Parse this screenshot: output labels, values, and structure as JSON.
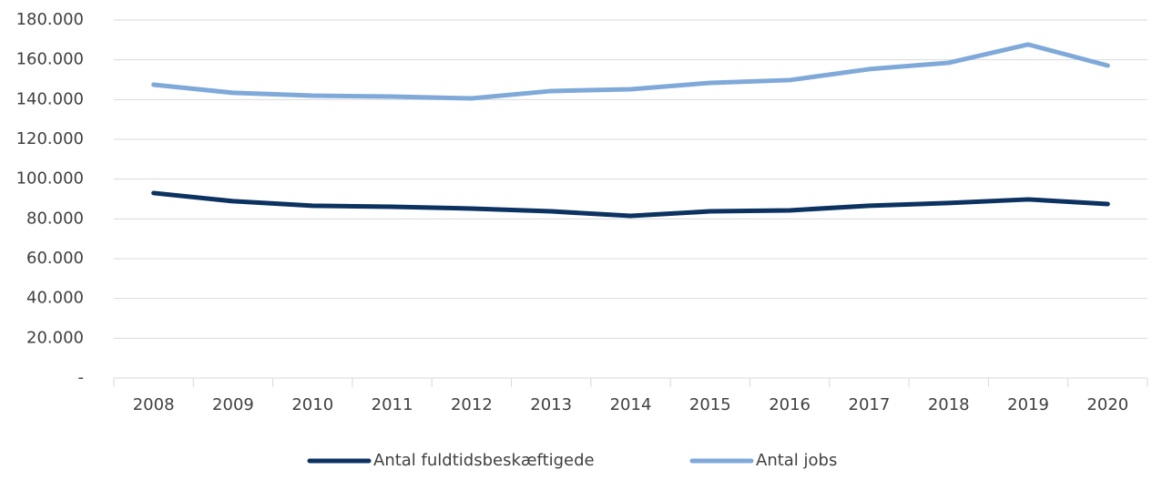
{
  "chart_data": {
    "type": "line",
    "categories": [
      "2008",
      "2009",
      "2010",
      "2011",
      "2012",
      "2013",
      "2014",
      "2015",
      "2016",
      "2017",
      "2018",
      "2019",
      "2020"
    ],
    "series": [
      {
        "name": "Antal fuldtidsbeskæftigede",
        "color": "#0b3260",
        "values": [
          93000,
          88900,
          86600,
          86100,
          85200,
          83800,
          81500,
          83800,
          84300,
          86600,
          88000,
          89800,
          87500
        ]
      },
      {
        "name": "Antal jobs",
        "color": "#7fa9d9",
        "values": [
          147500,
          143400,
          142000,
          141500,
          140600,
          144300,
          145200,
          148400,
          149800,
          155300,
          158500,
          167700,
          157100
        ]
      }
    ],
    "ylim": [
      0,
      180000
    ],
    "yticks": [
      {
        "value": 0,
        "label": "-"
      },
      {
        "value": 20000,
        "label": "20.000"
      },
      {
        "value": 40000,
        "label": "40.000"
      },
      {
        "value": 60000,
        "label": "60.000"
      },
      {
        "value": 80000,
        "label": "80.000"
      },
      {
        "value": 100000,
        "label": "100.000"
      },
      {
        "value": 120000,
        "label": "120.000"
      },
      {
        "value": 140000,
        "label": "140.000"
      },
      {
        "value": 160000,
        "label": "160.000"
      },
      {
        "value": 180000,
        "label": "180.000"
      }
    ],
    "grid": true,
    "legend": "bottom"
  }
}
